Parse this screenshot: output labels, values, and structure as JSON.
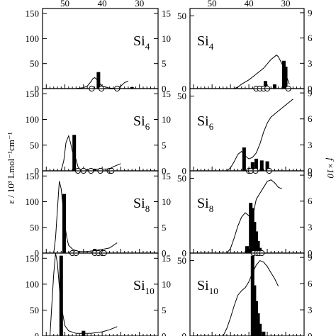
{
  "figure": {
    "ylabel_left": "ε / 10³ Lmol⁻¹cm⁻¹",
    "ylabel_right": "f ×10"
  },
  "chart_data": [
    {
      "type": "line",
      "panel": "left-1",
      "label_main": "Si",
      "label_sub": "4",
      "x_ticks": [
        50,
        40,
        30
      ],
      "yleft_ticks": [
        0,
        50,
        100,
        150
      ],
      "yleft_lim": [
        0,
        160
      ],
      "yright_ticks": [
        0,
        5,
        10,
        15
      ],
      "yright_lim": [
        0,
        16
      ],
      "curve": [
        [
          56,
          0
        ],
        [
          50,
          0
        ],
        [
          47,
          0
        ],
        [
          45,
          2
        ],
        [
          44,
          5
        ],
        [
          43,
          14
        ],
        [
          42.5,
          20
        ],
        [
          42,
          22
        ],
        [
          41.5,
          19
        ],
        [
          41,
          13
        ],
        [
          40.5,
          9
        ],
        [
          40,
          5
        ],
        [
          39,
          3
        ],
        [
          38,
          1
        ],
        [
          37,
          0.5
        ],
        [
          36,
          1
        ],
        [
          35,
          5
        ],
        [
          34,
          12
        ],
        [
          33,
          15
        ]
      ],
      "bars": [
        [
          41,
          3.3
        ],
        [
          32,
          0.3
        ]
      ],
      "circles": [
        42.8,
        40.2,
        36
      ]
    },
    {
      "type": "line",
      "panel": "left-2",
      "label_main": "Si",
      "label_sub": "6",
      "x_ticks": [],
      "yleft_ticks": [
        0,
        50,
        100,
        150
      ],
      "yleft_lim": [
        0,
        160
      ],
      "yright_ticks": [
        0,
        5,
        10,
        15
      ],
      "yright_lim": [
        0,
        16
      ],
      "curve": [
        [
          56,
          0
        ],
        [
          53,
          0
        ],
        [
          51,
          0
        ],
        [
          50.3,
          20
        ],
        [
          49.7,
          55
        ],
        [
          49,
          68
        ],
        [
          48.5,
          55
        ],
        [
          48,
          38
        ],
        [
          47,
          22
        ],
        [
          46.5,
          8
        ],
        [
          46,
          3
        ],
        [
          45,
          2
        ],
        [
          43,
          3
        ],
        [
          40,
          3
        ],
        [
          38,
          4
        ],
        [
          37,
          8
        ],
        [
          35,
          14
        ]
      ],
      "bars": [
        [
          47.5,
          7
        ],
        [
          42,
          0.4
        ]
      ],
      "circles": [
        46.5,
        45,
        43,
        40.5,
        38,
        37.5
      ]
    },
    {
      "type": "line",
      "panel": "left-3",
      "label_main": "Si",
      "label_sub": "8",
      "x_ticks": [],
      "yleft_ticks": [
        0,
        50,
        100,
        150
      ],
      "yleft_lim": [
        0,
        160
      ],
      "yright_ticks": [
        0,
        5,
        10,
        15
      ],
      "yright_lim": [
        0,
        16
      ],
      "curve": [
        [
          56,
          0
        ],
        [
          53,
          0
        ],
        [
          52.5,
          30
        ],
        [
          52,
          85
        ],
        [
          51.5,
          140
        ],
        [
          51,
          125
        ],
        [
          50.5,
          90
        ],
        [
          50,
          55
        ],
        [
          49.5,
          30
        ],
        [
          49,
          15
        ],
        [
          48,
          8
        ],
        [
          47,
          4
        ],
        [
          46,
          3
        ],
        [
          44,
          3
        ],
        [
          42,
          5
        ],
        [
          40,
          7
        ],
        [
          38,
          10
        ],
        [
          36,
          20
        ]
      ],
      "bars": [
        [
          50.2,
          11.5
        ],
        [
          42,
          0.8
        ],
        [
          40,
          0.4
        ]
      ],
      "circles": [
        48,
        47,
        42,
        41,
        40,
        39.5
      ]
    },
    {
      "type": "line",
      "panel": "left-4",
      "label_main": "Si",
      "label_sub": "10",
      "x_ticks": [],
      "yleft_ticks": [
        0,
        50,
        100,
        150
      ],
      "yleft_lim": [
        0,
        160
      ],
      "yright_ticks": [
        0,
        5,
        10,
        15
      ],
      "yright_lim": [
        0,
        16
      ],
      "curve": [
        [
          56,
          0
        ],
        [
          54,
          0
        ],
        [
          53.5,
          60
        ],
        [
          53,
          120
        ],
        [
          52.5,
          160
        ],
        [
          52,
          140
        ],
        [
          51.5,
          95
        ],
        [
          51,
          60
        ],
        [
          50.5,
          40
        ],
        [
          50,
          20
        ],
        [
          49,
          10
        ],
        [
          47,
          5
        ],
        [
          45,
          5
        ],
        [
          43,
          5
        ],
        [
          40,
          8
        ],
        [
          38,
          12
        ],
        [
          36,
          18
        ]
      ],
      "bars": [
        [
          51,
          15.5
        ],
        [
          45,
          1
        ]
      ],
      "circles": []
    },
    {
      "type": "line",
      "panel": "right-1",
      "label_main": "Si",
      "label_sub": "4",
      "x_ticks": [
        50,
        40,
        30
      ],
      "yleft_ticks": [
        0,
        50
      ],
      "yleft_lim": [
        0,
        55
      ],
      "yright_ticks": [
        0,
        3,
        6,
        9
      ],
      "yright_lim": [
        0,
        9.5
      ],
      "curve": [
        [
          56,
          0
        ],
        [
          44,
          0
        ],
        [
          43,
          1
        ],
        [
          42,
          3
        ],
        [
          40,
          6
        ],
        [
          38,
          10
        ],
        [
          36,
          14
        ],
        [
          35,
          17
        ],
        [
          34,
          20
        ],
        [
          33,
          22
        ],
        [
          32.5,
          23
        ],
        [
          32,
          22
        ],
        [
          31,
          17
        ],
        [
          30,
          10
        ],
        [
          29,
          3
        ]
      ],
      "bars": [
        [
          35.5,
          0.9
        ],
        [
          33,
          0.5
        ],
        [
          30.5,
          3.3
        ],
        [
          30,
          2.6
        ]
      ],
      "circles": [
        38,
        37,
        36,
        35,
        29.3
      ]
    },
    {
      "type": "line",
      "panel": "right-2",
      "label_main": "Si",
      "label_sub": "6",
      "x_ticks": [],
      "yleft_ticks": [
        0,
        50
      ],
      "yleft_lim": [
        0,
        55
      ],
      "yright_ticks": [
        0,
        3,
        6,
        9
      ],
      "yright_lim": [
        0,
        9.5
      ],
      "curve": [
        [
          56,
          0
        ],
        [
          46,
          0
        ],
        [
          45,
          2
        ],
        [
          44,
          6
        ],
        [
          43,
          11
        ],
        [
          42,
          13
        ],
        [
          41,
          10
        ],
        [
          40,
          8
        ],
        [
          39,
          9
        ],
        [
          38,
          12
        ],
        [
          37,
          18
        ],
        [
          36,
          26
        ],
        [
          35,
          32
        ],
        [
          34,
          36
        ],
        [
          33,
          38
        ],
        [
          32,
          40
        ],
        [
          31,
          42
        ],
        [
          30,
          44
        ],
        [
          29,
          46
        ],
        [
          28,
          48
        ]
      ],
      "bars": [
        [
          41.3,
          2.7
        ],
        [
          39,
          1
        ],
        [
          38,
          1.4
        ],
        [
          36.5,
          1.2
        ],
        [
          35,
          1.1
        ]
      ],
      "circles": [
        40,
        39.5,
        38.2,
        34.5
      ]
    },
    {
      "type": "line",
      "panel": "right-3",
      "label_main": "Si",
      "label_sub": "8",
      "x_ticks": [],
      "yleft_ticks": [
        0,
        50
      ],
      "yleft_lim": [
        0,
        55
      ],
      "yright_ticks": [
        0,
        3,
        6,
        9
      ],
      "yright_lim": [
        0,
        9.5
      ],
      "curve": [
        [
          56,
          0
        ],
        [
          46,
          0
        ],
        [
          45,
          3
        ],
        [
          44,
          10
        ],
        [
          43,
          18
        ],
        [
          42,
          24
        ],
        [
          41,
          27
        ],
        [
          40,
          25
        ],
        [
          39.5,
          22
        ],
        [
          39,
          23
        ],
        [
          38.5,
          30
        ],
        [
          38,
          36
        ],
        [
          37,
          40
        ],
        [
          36,
          44
        ],
        [
          35,
          48
        ],
        [
          34,
          49
        ],
        [
          33,
          47
        ],
        [
          32,
          44
        ],
        [
          31,
          43
        ]
      ],
      "bars": [
        [
          40.5,
          0.8
        ],
        [
          39.5,
          5.8
        ],
        [
          39,
          5.2
        ],
        [
          38.5,
          3.6
        ],
        [
          38,
          2.5
        ],
        [
          37.5,
          1.4
        ],
        [
          37,
          0.6
        ]
      ],
      "circles": [
        38.7,
        37.8,
        37.2,
        36.5
      ]
    },
    {
      "type": "line",
      "panel": "right-4",
      "label_main": "Si",
      "label_sub": "10",
      "x_ticks": [],
      "yleft_ticks": [
        0,
        50
      ],
      "yleft_lim": [
        0,
        55
      ],
      "yright_ticks": [
        0,
        3,
        6,
        9
      ],
      "yright_lim": [
        0,
        9.5
      ],
      "curve": [
        [
          56,
          0
        ],
        [
          47,
          0
        ],
        [
          46,
          5
        ],
        [
          45,
          12
        ],
        [
          44,
          20
        ],
        [
          43,
          27
        ],
        [
          42,
          30
        ],
        [
          41,
          32
        ],
        [
          40,
          36
        ],
        [
          39,
          42
        ],
        [
          38,
          47
        ],
        [
          37,
          50
        ],
        [
          36,
          49
        ],
        [
          35,
          46
        ],
        [
          34,
          42
        ],
        [
          33,
          38
        ],
        [
          32,
          33
        ]
      ],
      "bars": [
        [
          39,
          9.2
        ],
        [
          38.5,
          5.8
        ],
        [
          38,
          4
        ],
        [
          37.5,
          2.6
        ],
        [
          37,
          1.4
        ],
        [
          36,
          0.5
        ]
      ],
      "circles": []
    }
  ]
}
